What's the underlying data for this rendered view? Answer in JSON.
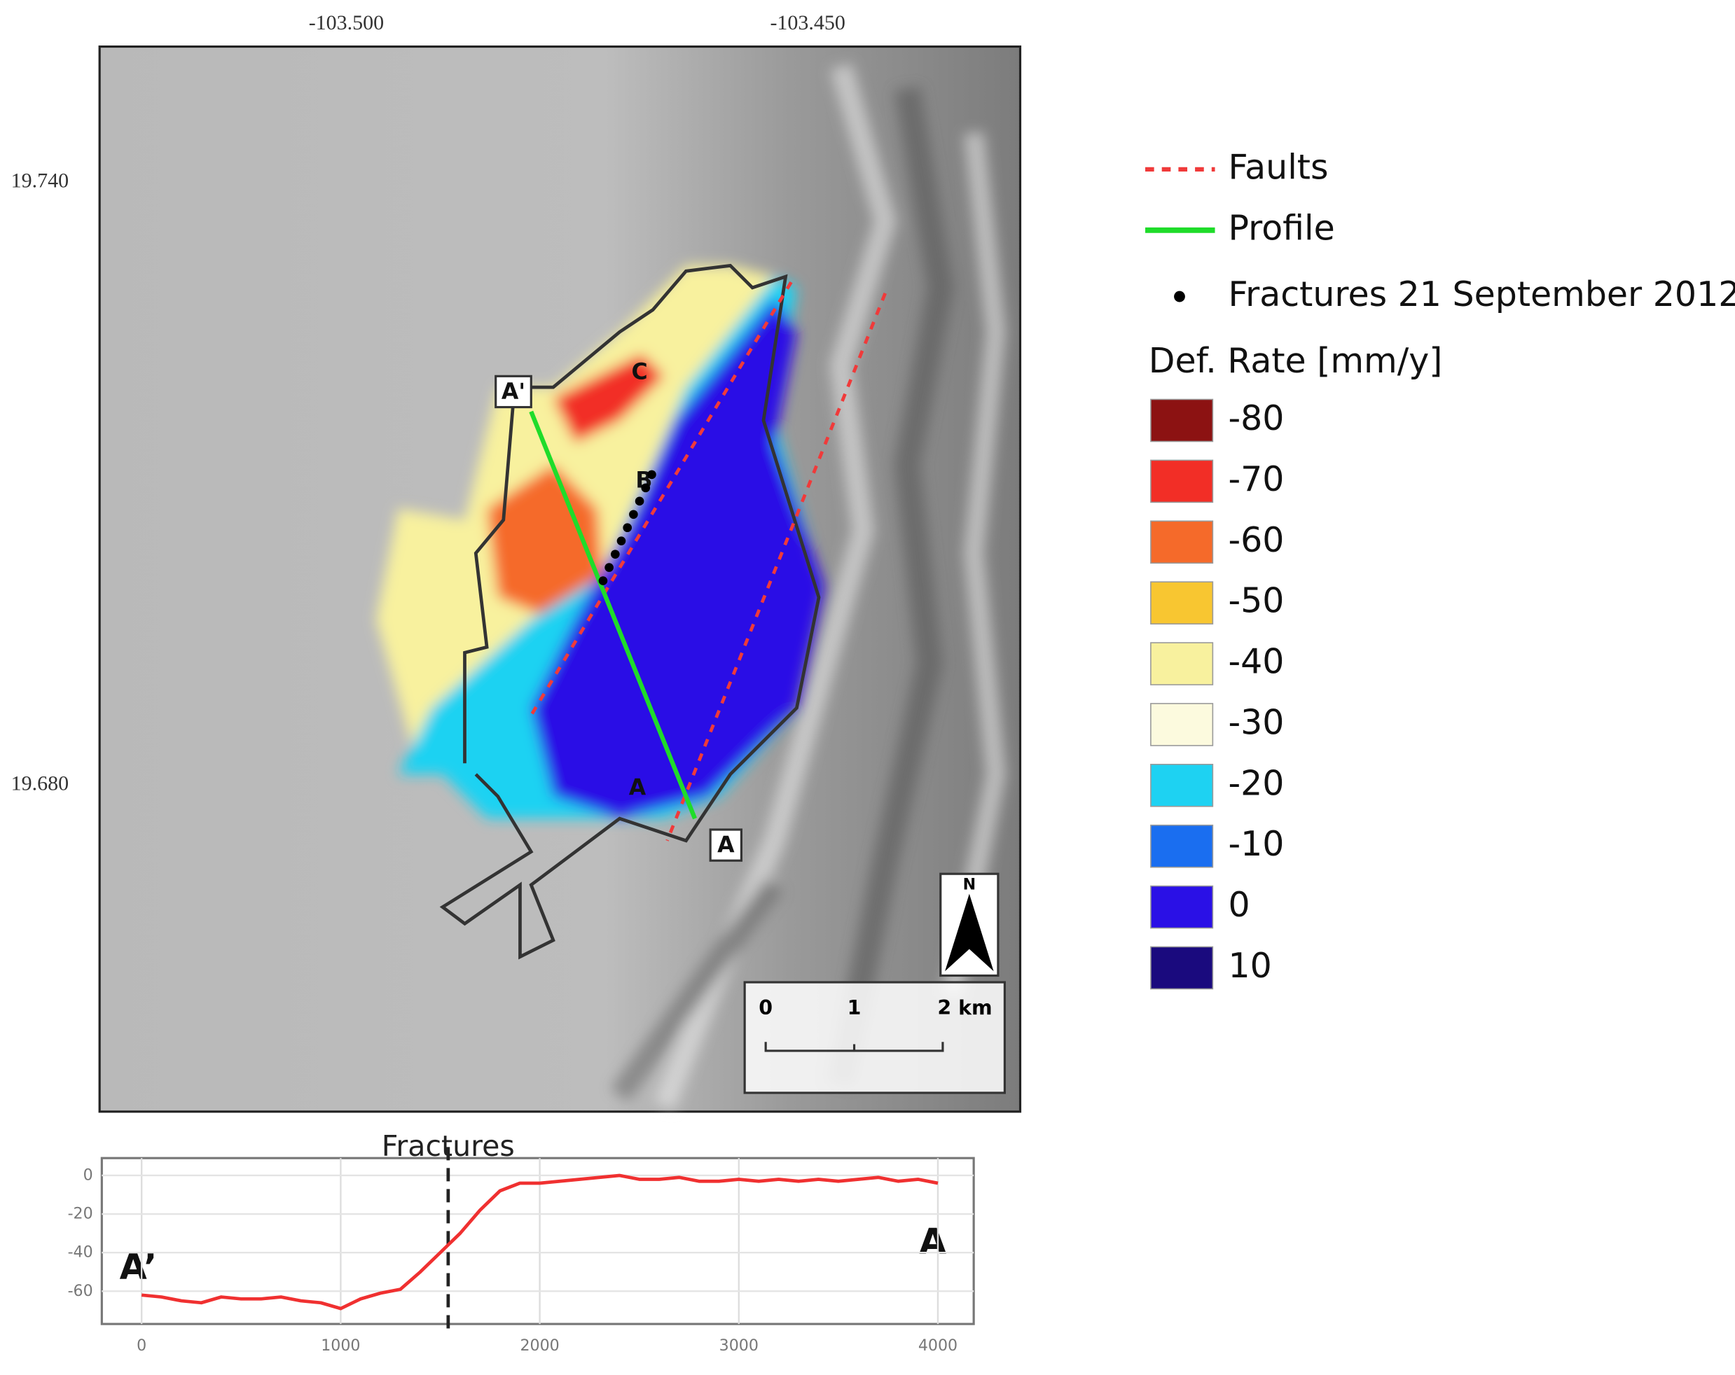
{
  "map": {
    "lon_labels": [
      "-103.500",
      "-103.450"
    ],
    "lat_labels": [
      "19.740",
      "19.680"
    ],
    "labels": {
      "a_prime": "A'",
      "a": "A",
      "b": "B",
      "c": "C",
      "a_point": "A",
      "north": "N"
    },
    "scale_bar": [
      "0",
      "1",
      "2 km"
    ]
  },
  "legend": {
    "items": [
      {
        "label": "Faults",
        "color": "#f03a3a"
      },
      {
        "label": "Profile",
        "color": "#1fdc2a"
      },
      {
        "label": "Fractures 21 September 2012",
        "color": "#000000"
      }
    ],
    "title": "Def. Rate [mm/y]",
    "classes": [
      {
        "value": -80,
        "color": "#8c1212"
      },
      {
        "value": -70,
        "color": "#f22e26"
      },
      {
        "value": -60,
        "color": "#f56a2a"
      },
      {
        "value": -50,
        "color": "#f8c631"
      },
      {
        "value": -40,
        "color": "#f8f19e"
      },
      {
        "value": -30,
        "color": "#fcfade"
      },
      {
        "value": -20,
        "color": "#1ed2f2"
      },
      {
        "value": -10,
        "color": "#1a6ef0"
      },
      {
        "value": 0,
        "color": "#2a10e6"
      },
      {
        "value": 10,
        "color": "#1a0a7e"
      }
    ]
  },
  "chart_data": {
    "type": "line",
    "annotation": "Fractures",
    "fracture_x": 1540,
    "start_label": "A’",
    "end_label": "A",
    "x": [
      0,
      100,
      200,
      300,
      400,
      500,
      600,
      700,
      800,
      900,
      1000,
      1100,
      1200,
      1300,
      1400,
      1500,
      1600,
      1700,
      1800,
      1900,
      2000,
      2100,
      2200,
      2300,
      2400,
      2500,
      2600,
      2700,
      2800,
      2900,
      3000,
      3100,
      3200,
      3300,
      3400,
      3500,
      3600,
      3700,
      3800,
      3900,
      4000
    ],
    "series": [
      {
        "name": "Def. Rate",
        "color": "#f03030",
        "values": [
          -62,
          -63,
          -65,
          -66,
          -63,
          -64,
          -64,
          -63,
          -65,
          -66,
          -69,
          -64,
          -61,
          -59,
          -50,
          -40,
          -30,
          -18,
          -8,
          -4,
          -4,
          -3,
          -2,
          -1,
          0,
          -2,
          -2,
          -1,
          -3,
          -3,
          -2,
          -3,
          -2,
          -3,
          -2,
          -3,
          -2,
          -1,
          -3,
          -2,
          -4
        ]
      }
    ],
    "xlim": [
      -200,
      4180
    ],
    "ylim": [
      -77,
      9
    ],
    "xticks": [
      0,
      1000,
      2000,
      3000,
      4000
    ],
    "yticks": [
      0,
      -20,
      -40,
      -60
    ],
    "grid": true
  }
}
